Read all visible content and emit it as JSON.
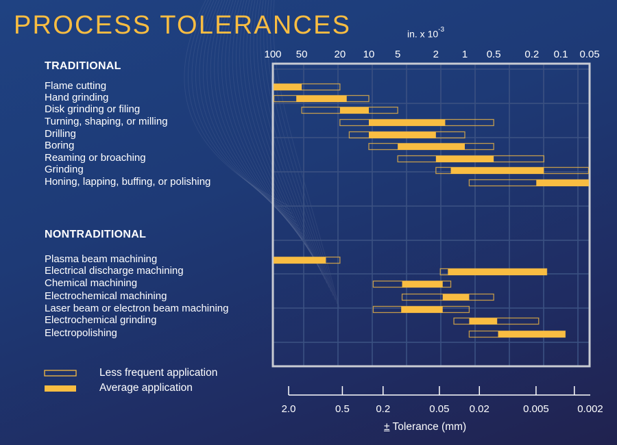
{
  "title": "PROCESS TOLERANCES",
  "chart_data": {
    "type": "range-bar",
    "top_axis": {
      "label_prefix": "in. x 10",
      "label_exponent": "-3",
      "scale": "log",
      "range": [
        100,
        0.05
      ],
      "ticks": [
        100,
        50,
        20,
        10,
        5,
        2,
        1,
        0.5,
        0.2,
        0.1,
        0.05
      ],
      "tick_labels": [
        "100",
        "50",
        "20",
        "10",
        "5",
        "2",
        "1",
        "0.5",
        "0.2",
        "0.1",
        "0.05"
      ]
    },
    "bottom_axis": {
      "label_symbol": "±",
      "label": "Tolerance (mm)",
      "scale": "log",
      "ticks": [
        2.0,
        0.5,
        0.2,
        0.05,
        0.02,
        0.005,
        0.002
      ],
      "tick_labels": [
        "2.0",
        "0.5",
        "0.2",
        "0.05",
        "0.02",
        "0.005",
        "0.002"
      ]
    },
    "grid": true,
    "value_format": "[less_frequent_min, average_min, average_max, less_frequent_max] in in. x 10^-3 (tolerance, large to small)",
    "groups": [
      {
        "name": "TRADITIONAL",
        "processes": [
          {
            "label": "Flame cutting",
            "range": [
              100,
              100,
              50,
              20
            ]
          },
          {
            "label": "Hand grinding",
            "range": [
              100,
              57,
              17,
              10
            ]
          },
          {
            "label": "Disk grinding or filing",
            "range": [
              50,
              20,
              10,
              5
            ]
          },
          {
            "label": "Turning, shaping, or milling",
            "range": [
              20,
              10,
              1.6,
              0.5
            ]
          },
          {
            "label": "Drilling",
            "range": [
              16,
              10,
              2,
              1
            ]
          },
          {
            "label": "Boring",
            "range": [
              10,
              5,
              1,
              0.5
            ]
          },
          {
            "label": "Reaming or broaching",
            "range": [
              5,
              2,
              0.5,
              0.15
            ]
          },
          {
            "label": "Grinding",
            "range": [
              2,
              1.4,
              0.15,
              0.05
            ]
          },
          {
            "label": "Honing, lapping, buffing, or polishing",
            "range": [
              0.9,
              0.18,
              0.05,
              0.05
            ]
          }
        ]
      },
      {
        "name": "NONTRADITIONAL",
        "processes": [
          {
            "label": "Plasma beam machining",
            "range": [
              100,
              100,
              28,
              20
            ]
          },
          {
            "label": "Electrical discharge machining",
            "range": [
              1.8,
              1.5,
              0.14,
              0.14
            ]
          },
          {
            "label": "Chemical machining",
            "range": [
              9,
              4.5,
              1.7,
              1.4
            ]
          },
          {
            "label": "Electrochemical machining",
            "range": [
              4.5,
              1.7,
              0.9,
              0.5
            ]
          },
          {
            "label": "Laser beam or electron beam machining",
            "range": [
              9,
              4.6,
              1.7,
              0.9
            ]
          },
          {
            "label": "Electrochemical grinding",
            "range": [
              1.3,
              0.9,
              0.46,
              0.17
            ]
          },
          {
            "label": "Electropolishing",
            "range": [
              0.9,
              0.45,
              0.09,
              0.09
            ]
          }
        ]
      }
    ],
    "legend": {
      "placement": "bottom-left",
      "items": [
        {
          "label": "Less frequent application",
          "style": "outline"
        },
        {
          "label": "Average application",
          "style": "solid"
        }
      ]
    },
    "colors": {
      "bar": "#f9bd42",
      "frame": "#c9ccd3",
      "grid": "#3b5182"
    }
  }
}
